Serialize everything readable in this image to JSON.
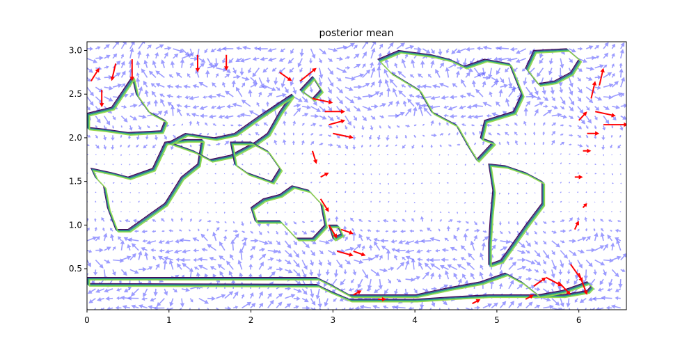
{
  "chart_data": {
    "type": "quiver-contour",
    "title": "posterior mean",
    "xlabel": "",
    "ylabel": "",
    "xlim": [
      0,
      6.58
    ],
    "ylim": [
      0.03,
      3.1
    ],
    "xticks": [
      0,
      1,
      2,
      3,
      4,
      5,
      6
    ],
    "xtick_labels": [
      "0",
      "1",
      "2",
      "3",
      "4",
      "5",
      "6"
    ],
    "yticks": [
      0.5,
      1.0,
      1.5,
      2.0,
      2.5,
      3.0
    ],
    "ytick_labels": [
      "0.5",
      "1.0",
      "1.5",
      "2.0",
      "2.5",
      "3.0"
    ],
    "grid": false,
    "colors": {
      "arrow": "#4a4aff",
      "highlight_arrow": "#ff0000",
      "contour_levels": [
        "#440154",
        "#3b528b",
        "#21918c",
        "#5ec962",
        "#9ad94f"
      ]
    },
    "contours": [
      {
        "name": "americas-north",
        "points": [
          [
            4.42,
            2.9
          ],
          [
            4.6,
            2.82
          ],
          [
            4.85,
            2.9
          ],
          [
            5.15,
            2.85
          ],
          [
            5.3,
            2.5
          ],
          [
            5.2,
            2.3
          ],
          [
            4.85,
            2.2
          ],
          [
            4.8,
            2.0
          ],
          [
            4.95,
            1.95
          ],
          [
            4.75,
            1.75
          ],
          [
            4.65,
            1.9
          ],
          [
            4.5,
            2.15
          ],
          [
            4.2,
            2.3
          ],
          [
            4.05,
            2.55
          ],
          [
            3.7,
            2.75
          ],
          [
            3.55,
            2.9
          ],
          [
            3.8,
            3.0
          ],
          [
            4.2,
            2.95
          ]
        ]
      },
      {
        "name": "americas-south",
        "points": [
          [
            4.9,
            1.7
          ],
          [
            5.1,
            1.68
          ],
          [
            5.35,
            1.6
          ],
          [
            5.55,
            1.5
          ],
          [
            5.55,
            1.25
          ],
          [
            5.35,
            1.0
          ],
          [
            5.2,
            0.8
          ],
          [
            5.05,
            0.6
          ],
          [
            4.9,
            0.55
          ],
          [
            4.9,
            0.8
          ],
          [
            4.92,
            1.1
          ],
          [
            4.95,
            1.4
          ]
        ]
      },
      {
        "name": "greenland",
        "points": [
          [
            5.35,
            2.8
          ],
          [
            5.45,
            3.0
          ],
          [
            5.85,
            3.02
          ],
          [
            6.0,
            2.9
          ],
          [
            5.9,
            2.75
          ],
          [
            5.7,
            2.65
          ],
          [
            5.5,
            2.62
          ]
        ]
      },
      {
        "name": "europe-asia-west",
        "points": [
          [
            0.0,
            2.28
          ],
          [
            0.3,
            2.35
          ],
          [
            0.55,
            2.7
          ],
          [
            0.6,
            2.5
          ],
          [
            0.75,
            2.3
          ],
          [
            0.95,
            2.2
          ],
          [
            0.9,
            2.08
          ],
          [
            0.5,
            2.06
          ],
          [
            0.2,
            2.1
          ],
          [
            0.0,
            2.12
          ]
        ]
      },
      {
        "name": "africa-like",
        "points": [
          [
            0.05,
            1.65
          ],
          [
            0.3,
            1.6
          ],
          [
            0.5,
            1.55
          ],
          [
            0.8,
            1.65
          ],
          [
            0.95,
            1.95
          ],
          [
            1.2,
            1.98
          ],
          [
            1.4,
            1.98
          ],
          [
            1.35,
            1.7
          ],
          [
            1.15,
            1.55
          ],
          [
            0.95,
            1.25
          ],
          [
            0.8,
            1.15
          ],
          [
            0.65,
            1.05
          ],
          [
            0.5,
            0.95
          ],
          [
            0.35,
            0.95
          ],
          [
            0.25,
            1.2
          ],
          [
            0.2,
            1.45
          ],
          [
            0.1,
            1.55
          ]
        ]
      },
      {
        "name": "asia-south",
        "points": [
          [
            1.0,
            1.95
          ],
          [
            1.2,
            2.05
          ],
          [
            1.55,
            2.0
          ],
          [
            1.8,
            2.05
          ],
          [
            2.1,
            2.25
          ],
          [
            2.5,
            2.5
          ],
          [
            2.35,
            2.3
          ],
          [
            2.2,
            2.05
          ],
          [
            2.05,
            1.95
          ],
          [
            1.75,
            1.8
          ],
          [
            1.5,
            1.75
          ],
          [
            1.3,
            1.85
          ]
        ]
      },
      {
        "name": "australia",
        "points": [
          [
            2.05,
            1.05
          ],
          [
            2.35,
            1.05
          ],
          [
            2.55,
            0.85
          ],
          [
            2.75,
            0.85
          ],
          [
            2.9,
            1.0
          ],
          [
            2.85,
            1.25
          ],
          [
            2.7,
            1.4
          ],
          [
            2.5,
            1.45
          ],
          [
            2.35,
            1.35
          ],
          [
            2.15,
            1.3
          ],
          [
            2.0,
            1.2
          ]
        ]
      },
      {
        "name": "antarctica",
        "points": [
          [
            0.0,
            0.4
          ],
          [
            2.8,
            0.4
          ],
          [
            2.95,
            0.33
          ],
          [
            3.2,
            0.2
          ],
          [
            4.0,
            0.2
          ],
          [
            4.4,
            0.28
          ],
          [
            4.8,
            0.35
          ],
          [
            5.1,
            0.45
          ],
          [
            5.3,
            0.35
          ],
          [
            5.5,
            0.2
          ],
          [
            5.8,
            0.25
          ],
          [
            6.1,
            0.35
          ],
          [
            6.15,
            0.3
          ],
          [
            6.1,
            0.25
          ],
          [
            5.8,
            0.2
          ],
          [
            5.3,
            0.2
          ],
          [
            4.9,
            0.2
          ],
          [
            4.5,
            0.18
          ],
          [
            4.0,
            0.15
          ],
          [
            3.2,
            0.15
          ],
          [
            2.95,
            0.25
          ],
          [
            2.8,
            0.32
          ],
          [
            0.0,
            0.33
          ]
        ]
      },
      {
        "name": "indonesia",
        "points": [
          [
            1.75,
            1.95
          ],
          [
            2.0,
            1.95
          ],
          [
            2.2,
            1.85
          ],
          [
            2.35,
            1.65
          ],
          [
            2.25,
            1.5
          ],
          [
            2.1,
            1.55
          ],
          [
            1.95,
            1.6
          ],
          [
            1.8,
            1.7
          ]
        ]
      },
      {
        "name": "japan",
        "points": [
          [
            2.6,
            2.55
          ],
          [
            2.75,
            2.7
          ],
          [
            2.85,
            2.55
          ],
          [
            2.75,
            2.45
          ]
        ]
      },
      {
        "name": "pacific-islands",
        "points": [
          [
            2.95,
            1.0
          ],
          [
            3.05,
            1.0
          ],
          [
            3.1,
            0.9
          ],
          [
            3.0,
            0.85
          ]
        ]
      }
    ],
    "highlight_arrows": [
      [
        0.05,
        2.65,
        0.1,
        0.15
      ],
      [
        0.18,
        2.55,
        0.0,
        -0.2
      ],
      [
        0.35,
        2.85,
        -0.05,
        -0.2
      ],
      [
        0.55,
        2.9,
        0.0,
        -0.25
      ],
      [
        1.35,
        2.95,
        0.0,
        -0.2
      ],
      [
        1.7,
        2.95,
        0.0,
        -0.18
      ],
      [
        2.35,
        2.75,
        0.15,
        -0.1
      ],
      [
        2.6,
        2.65,
        0.2,
        0.15
      ],
      [
        2.75,
        2.45,
        0.25,
        -0.05
      ],
      [
        2.9,
        2.3,
        0.25,
        0.0
      ],
      [
        2.95,
        2.15,
        0.2,
        0.05
      ],
      [
        3.0,
        2.05,
        0.25,
        -0.05
      ],
      [
        2.75,
        1.85,
        0.05,
        -0.15
      ],
      [
        2.85,
        1.55,
        0.1,
        0.05
      ],
      [
        2.85,
        1.3,
        0.1,
        -0.15
      ],
      [
        2.95,
        1.0,
        0.1,
        -0.15
      ],
      [
        3.05,
        0.7,
        0.2,
        -0.05
      ],
      [
        3.1,
        0.95,
        0.15,
        -0.05
      ],
      [
        3.25,
        0.7,
        0.15,
        -0.05
      ],
      [
        3.25,
        0.2,
        0.1,
        0.05
      ],
      [
        3.55,
        0.15,
        0.1,
        0.0
      ],
      [
        4.7,
        0.1,
        0.1,
        0.05
      ],
      [
        5.35,
        0.15,
        0.1,
        0.05
      ],
      [
        5.45,
        0.3,
        0.15,
        0.1
      ],
      [
        5.6,
        0.4,
        0.2,
        -0.1
      ],
      [
        5.75,
        0.35,
        0.15,
        -0.15
      ],
      [
        5.9,
        0.55,
        0.15,
        -0.2
      ],
      [
        6.0,
        0.45,
        0.1,
        -0.25
      ],
      [
        5.95,
        0.95,
        0.05,
        0.1
      ],
      [
        6.05,
        1.2,
        0.05,
        0.05
      ],
      [
        5.95,
        1.55,
        0.1,
        0.0
      ],
      [
        6.05,
        1.85,
        0.1,
        0.0
      ],
      [
        6.1,
        2.05,
        0.15,
        0.0
      ],
      [
        6.0,
        2.2,
        0.1,
        0.1
      ],
      [
        6.2,
        2.3,
        0.25,
        -0.05
      ],
      [
        6.3,
        2.15,
        0.3,
        0.0
      ],
      [
        6.15,
        2.45,
        0.05,
        0.2
      ],
      [
        6.25,
        2.6,
        0.05,
        0.2
      ]
    ]
  }
}
